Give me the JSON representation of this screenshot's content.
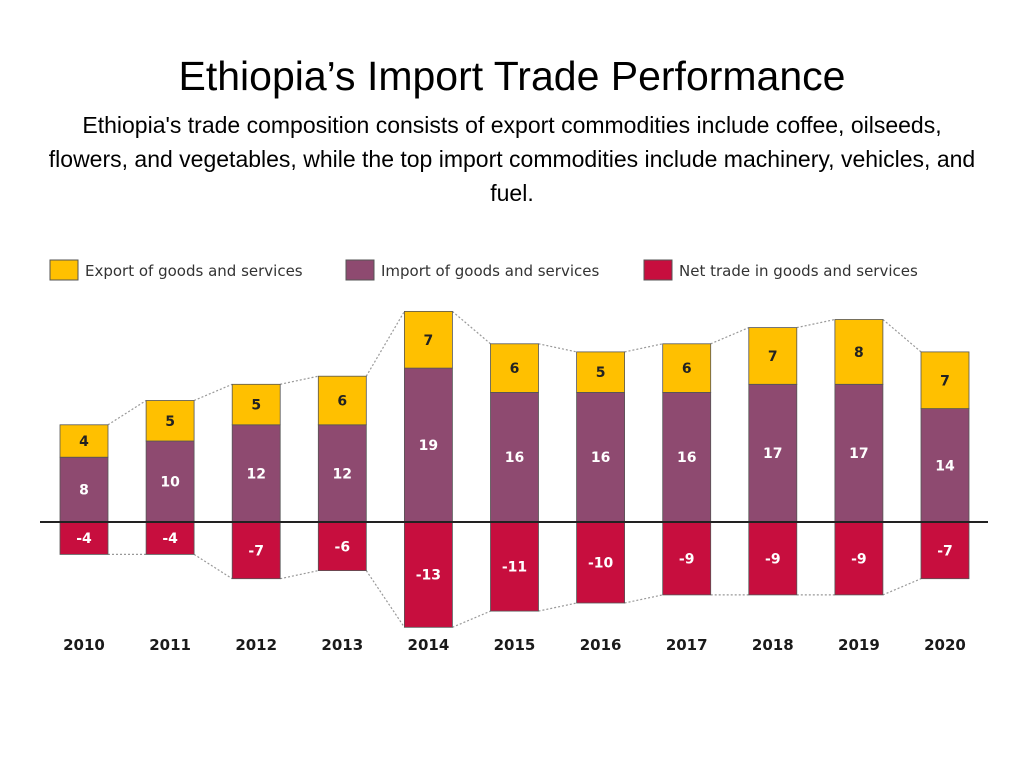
{
  "slide": {
    "title": "Ethiopia’s Import Trade Performance",
    "subtitle": "Ethiopia's trade composition consists of export commodities include coffee, oilseeds, flowers, and vegetables, while the top import commodities include machinery, vehicles, and fuel."
  },
  "colors": {
    "export": "#FFC000",
    "import": "#8E4A70",
    "net": "#C70E3E",
    "outline": "#555555",
    "connector": "#999999"
  },
  "chart_data": {
    "type": "bar",
    "stacked": true,
    "categories": [
      "2010",
      "2011",
      "2012",
      "2013",
      "2014",
      "2015",
      "2016",
      "2017",
      "2018",
      "2019",
      "2020"
    ],
    "series": [
      {
        "name": "Export of goods and services",
        "values": [
          4,
          5,
          5,
          6,
          7,
          6,
          5,
          6,
          7,
          8,
          7
        ]
      },
      {
        "name": "Import of goods and services",
        "values": [
          8,
          10,
          12,
          12,
          19,
          16,
          16,
          16,
          17,
          17,
          14
        ]
      },
      {
        "name": "Net trade in goods and services",
        "values": [
          -4,
          -4,
          -7,
          -6,
          -13,
          -11,
          -10,
          -9,
          -9,
          -9,
          -7
        ]
      }
    ],
    "legend": "top",
    "grid": false
  }
}
